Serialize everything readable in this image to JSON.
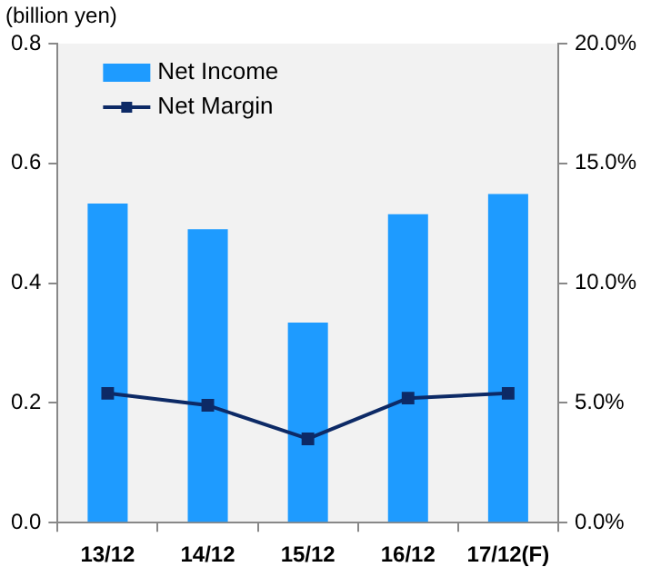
{
  "chart_data": {
    "type": "bar",
    "ylabel": "(billion yen)",
    "categories": [
      "13/12",
      "14/12",
      "15/12",
      "16/12",
      "17/12(F)"
    ],
    "series": [
      {
        "name": "Net Income",
        "color": "#1e9bff",
        "values": [
          0.533,
          0.49,
          0.334,
          0.515,
          0.549
        ]
      },
      {
        "name": "Net Margin",
        "type": "line",
        "axis": "y2",
        "color": "#0d2a66",
        "values": [
          5.4,
          4.9,
          3.5,
          5.2,
          5.4
        ]
      }
    ],
    "ylim": [
      0,
      0.8
    ],
    "yticks": [
      {
        "value": 0,
        "label": "0.0"
      },
      {
        "value": 0.2,
        "label": "0.2"
      },
      {
        "value": 0.4,
        "label": "0.4"
      },
      {
        "value": 0.6,
        "label": "0.6"
      },
      {
        "value": 0.8,
        "label": "0.8"
      }
    ],
    "y2lim": [
      0,
      20
    ],
    "y2ticks": [
      {
        "value": 0,
        "label": "0.0%"
      },
      {
        "value": 5,
        "label": "5.0%"
      },
      {
        "value": 10,
        "label": "10.0%"
      },
      {
        "value": 15,
        "label": "15.0%"
      },
      {
        "value": 20,
        "label": "20.0%"
      }
    ],
    "grid": false,
    "legend": "top left",
    "marker": "square",
    "line_style": "solid"
  }
}
